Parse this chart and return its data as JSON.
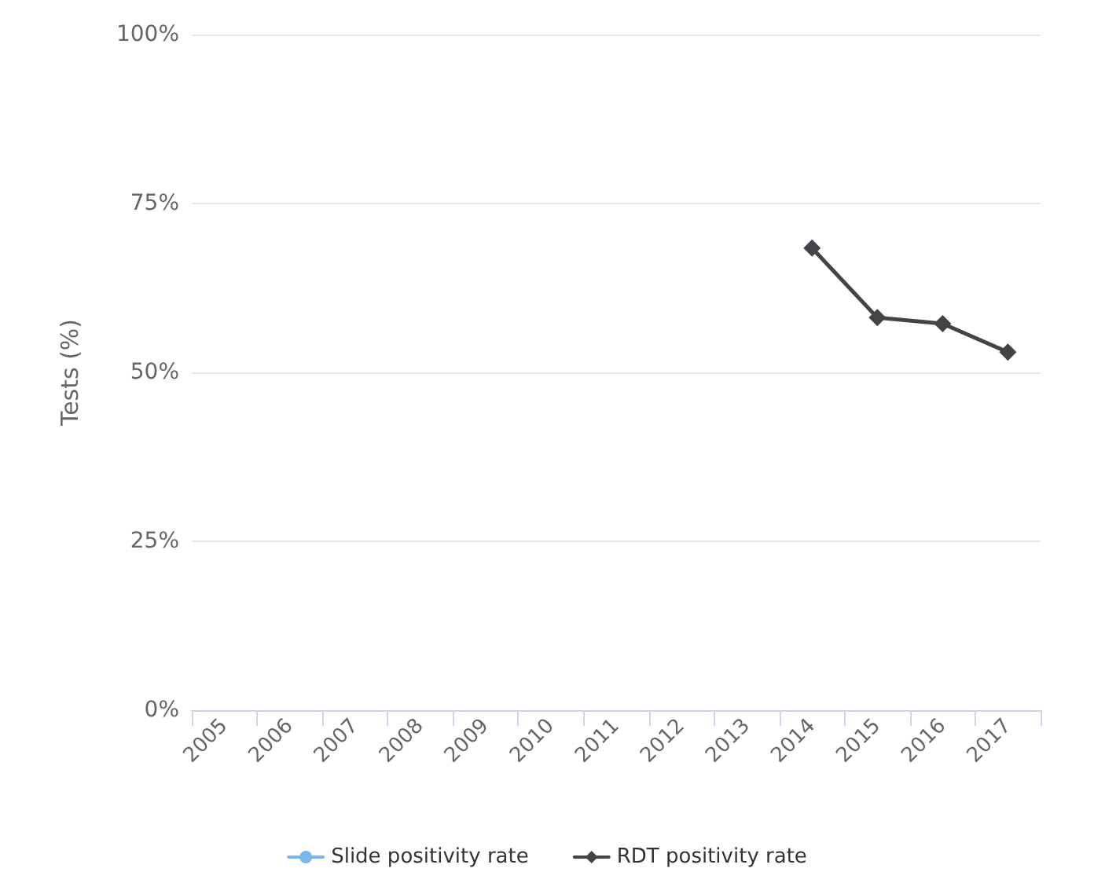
{
  "chart_data": {
    "type": "line",
    "ylabel": "Tests (%)",
    "categories": [
      "2005",
      "2006",
      "2007",
      "2008",
      "2009",
      "2010",
      "2011",
      "2012",
      "2013",
      "2014",
      "2015",
      "2016",
      "2017"
    ],
    "series": [
      {
        "name": "Slide positivity rate",
        "color": "#7cb5ec",
        "marker": "circle",
        "values": [
          null,
          null,
          null,
          null,
          null,
          null,
          null,
          null,
          null,
          null,
          null,
          null,
          null
        ]
      },
      {
        "name": "RDT positivity rate",
        "color": "#434348",
        "marker": "diamond",
        "values": [
          null,
          null,
          null,
          null,
          null,
          null,
          null,
          null,
          null,
          68.4,
          58.1,
          57.2,
          53.0
        ]
      }
    ],
    "ylim": [
      0,
      100
    ],
    "yticks": [
      {
        "value": 0,
        "label": "0%"
      },
      {
        "value": 25,
        "label": "25%"
      },
      {
        "value": 50,
        "label": "50%"
      },
      {
        "value": 75,
        "label": "75%"
      },
      {
        "value": 100,
        "label": "100%"
      }
    ],
    "grid": "y",
    "legend": "bottom"
  }
}
